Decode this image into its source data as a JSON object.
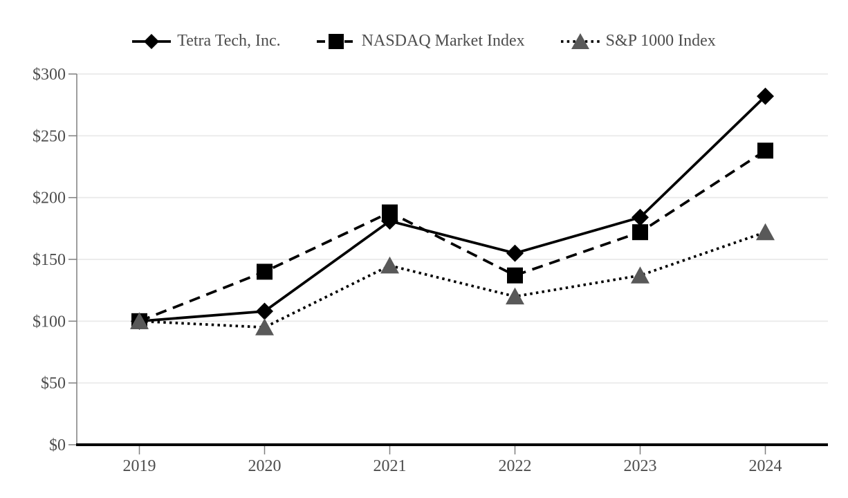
{
  "page": {
    "background": "#ffffff"
  },
  "chart_data": {
    "type": "line",
    "title": "",
    "xlabel": "",
    "ylabel": "",
    "categories": [
      "2019",
      "2020",
      "2021",
      "2022",
      "2023",
      "2024"
    ],
    "series": [
      {
        "name": "Tetra Tech, Inc.",
        "values": [
          100,
          108,
          181,
          155,
          184,
          282
        ],
        "color": "#000000",
        "line_style": "solid",
        "marker": "diamond",
        "marker_color": "#000000"
      },
      {
        "name": "NASDAQ Market Index",
        "values": [
          100,
          140,
          188,
          137,
          172,
          238
        ],
        "color": "#000000",
        "line_style": "dashed",
        "marker": "square",
        "marker_color": "#000000"
      },
      {
        "name": "S&P 1000 Index",
        "values": [
          100,
          95,
          145,
          120,
          137,
          172
        ],
        "color": "#000000",
        "line_style": "dotted",
        "marker": "triangle",
        "marker_color": "#595959"
      }
    ],
    "ylim": [
      0,
      300
    ],
    "ytick_step": 50,
    "ytick_labels": [
      "$0",
      "$50",
      "$100",
      "$150",
      "$200",
      "$250",
      "$300"
    ],
    "grid": true,
    "legend_position": "top",
    "colors": {
      "gridline": "#e9e9e9",
      "axis_line": "#7f7f7f",
      "x_axis_line": "#000000",
      "text": "#4d4d4d",
      "background": "#ffffff"
    }
  }
}
